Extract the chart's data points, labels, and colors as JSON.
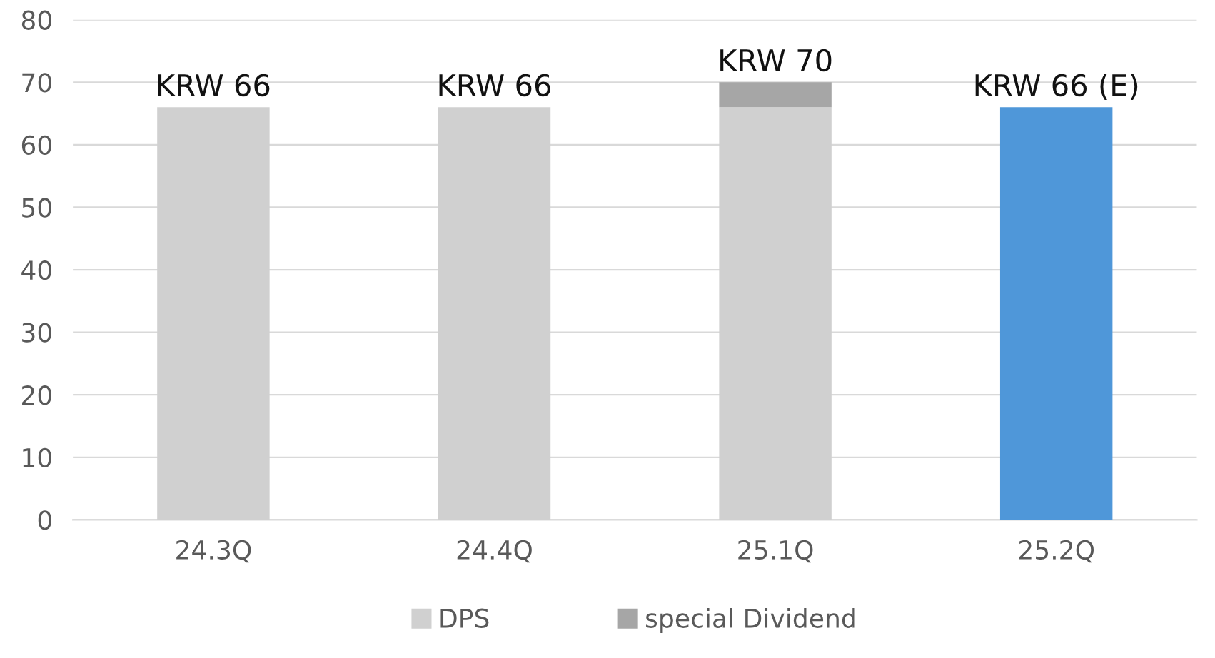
{
  "chart_data": {
    "type": "bar",
    "stacked": true,
    "categories": [
      "24.3Q",
      "24.4Q",
      "25.1Q",
      "25.2Q"
    ],
    "series": [
      {
        "name": "DPS",
        "color": "#d0d0d0",
        "colors": [
          "#d0d0d0",
          "#d0d0d0",
          "#d0d0d0",
          "#4f97d9"
        ],
        "values": [
          66,
          66,
          66,
          66
        ]
      },
      {
        "name": "special Dividend",
        "color": "#a6a6a6",
        "values": [
          null,
          null,
          4,
          null
        ]
      }
    ],
    "totals": [
      "KRW 66",
      "KRW 66",
      "KRW 70",
      "KRW 66 (E)"
    ],
    "ylim": [
      0,
      80
    ],
    "yticks": [
      0,
      10,
      20,
      30,
      40,
      50,
      60,
      70,
      80
    ],
    "grid": "y",
    "legend": "bottom"
  }
}
